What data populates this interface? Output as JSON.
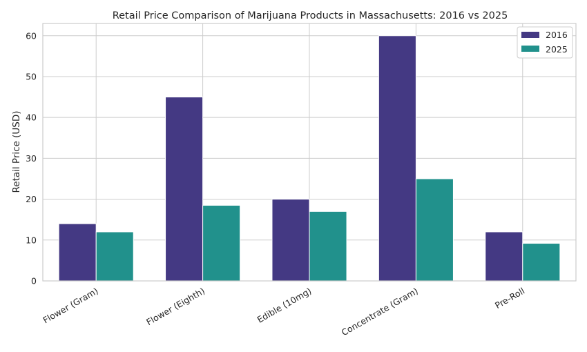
{
  "chart_data": {
    "type": "bar",
    "title": "Retail Price Comparison of Marijuana Products in Massachusetts: 2016 vs 2025",
    "xlabel": "",
    "ylabel": "Retail Price (USD)",
    "categories": [
      "Flower (Gram)",
      "Flower (Eighth)",
      "Edible (10mg)",
      "Concentrate (Gram)",
      "Pre-Roll"
    ],
    "series": [
      {
        "name": "2016",
        "color": "#443983",
        "values": [
          14,
          45,
          20,
          60,
          12
        ]
      },
      {
        "name": "2025",
        "color": "#21918c",
        "values": [
          12,
          18.5,
          17,
          25,
          9.2
        ]
      }
    ],
    "ylim": [
      0,
      63
    ],
    "yticks": [
      "0",
      "10",
      "20",
      "30",
      "40",
      "50",
      "60"
    ],
    "grid": true,
    "legend_position": "top-right"
  }
}
